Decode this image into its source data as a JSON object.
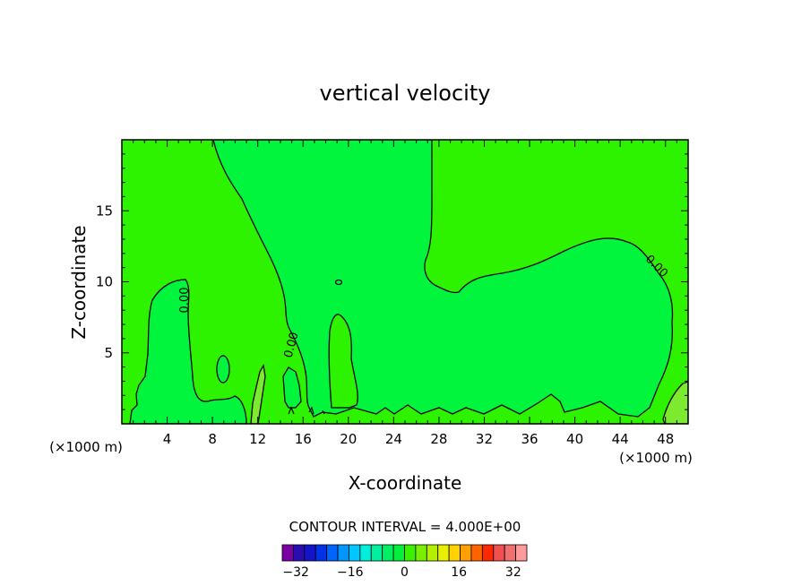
{
  "chart_data": {
    "type": "contour",
    "title": "vertical velocity",
    "xlabel": "X-coordinate",
    "ylabel": "Z-coordinate",
    "x_unit_note": "(×1000 m)",
    "x_unit_note_right": "(×1000 m)",
    "xlim": [
      0,
      50
    ],
    "ylim": [
      0,
      20
    ],
    "x_ticks": [
      4,
      8,
      12,
      16,
      20,
      24,
      28,
      32,
      36,
      40,
      44,
      48
    ],
    "y_ticks": [
      5,
      10,
      15
    ],
    "x_tick_labels": [
      "4",
      "8",
      "12",
      "16",
      "20",
      "24",
      "28",
      "32",
      "36",
      "40",
      "44",
      "48"
    ],
    "y_tick_labels": [
      "5",
      "10",
      "15"
    ],
    "contour_interval_text": "CONTOUR INTERVAL = 4.000E+00",
    "contour_labels": [
      "0.00",
      "0.00",
      "0.00"
    ],
    "colorbar": {
      "tick_values": [
        -32,
        -16,
        0,
        16,
        32
      ],
      "tick_labels": [
        "−32",
        "−16",
        "0",
        "16",
        "32"
      ],
      "min": -36,
      "max": 36,
      "interval": 4,
      "colors": [
        "#7a00a6",
        "#2a0cb0",
        "#1414c8",
        "#0032e6",
        "#0064ff",
        "#0096ff",
        "#00c8ff",
        "#00eedc",
        "#00f0a0",
        "#00f064",
        "#00f03c",
        "#3cf000",
        "#78f000",
        "#b4f000",
        "#e6f000",
        "#ffd200",
        "#ffa000",
        "#ff6400",
        "#ff2800",
        "#f05050",
        "#f07070",
        "#ff9a9a"
      ]
    },
    "fill_colors": {
      "positive": "#2df200",
      "near_zero": "#00f53c",
      "upper_band": "#7ceb30"
    }
  }
}
